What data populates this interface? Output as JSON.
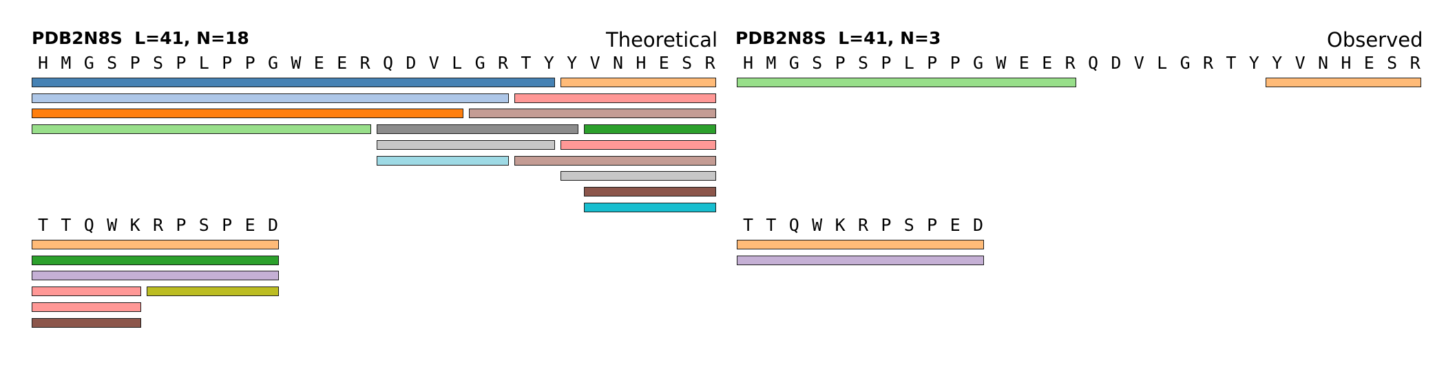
{
  "panels": [
    {
      "id": "theoretical",
      "title": "PDB2N8S  L=41, N=18",
      "label": "Theoretical",
      "rows": [
        {
          "sequence": [
            "H",
            "M",
            "G",
            "S",
            "P",
            "S",
            "P",
            "L",
            "P",
            "P",
            "G",
            "W",
            "E",
            "E",
            "R",
            "Q",
            "D",
            "V",
            "L",
            "G",
            "R",
            "T",
            "Y",
            "Y",
            "V",
            "N",
            "H",
            "E",
            "S",
            "R"
          ],
          "segments": [
            {
              "start": 1,
              "end": 23,
              "track": 0,
              "color": "#4682b4"
            },
            {
              "start": 24,
              "end": 30,
              "track": 0,
              "color": "#ffbb78"
            },
            {
              "start": 1,
              "end": 21,
              "track": 1,
              "color": "#aec7e8"
            },
            {
              "start": 22,
              "end": 30,
              "track": 1,
              "color": "#ff9896"
            },
            {
              "start": 1,
              "end": 19,
              "track": 2,
              "color": "#ff7f0e"
            },
            {
              "start": 20,
              "end": 30,
              "track": 2,
              "color": "#c49c94"
            },
            {
              "start": 1,
              "end": 15,
              "track": 3,
              "color": "#98df8a"
            },
            {
              "start": 16,
              "end": 24,
              "track": 3,
              "color": "#8c8c8c"
            },
            {
              "start": 25,
              "end": 30,
              "track": 3,
              "color": "#2ca02c"
            },
            {
              "start": 16,
              "end": 23,
              "track": 4,
              "color": "#c7c7c7"
            },
            {
              "start": 24,
              "end": 30,
              "track": 4,
              "color": "#ff9896"
            },
            {
              "start": 16,
              "end": 21,
              "track": 5,
              "color": "#9edae5"
            },
            {
              "start": 22,
              "end": 30,
              "track": 5,
              "color": "#c49c94"
            },
            {
              "start": 24,
              "end": 30,
              "track": 6,
              "color": "#c7c7c7"
            },
            {
              "start": 25,
              "end": 30,
              "track": 7,
              "color": "#8c564b"
            },
            {
              "start": 25,
              "end": 30,
              "track": 8,
              "color": "#17becf"
            }
          ]
        },
        {
          "sequence": [
            "T",
            "T",
            "Q",
            "W",
            "K",
            "R",
            "P",
            "S",
            "P",
            "E",
            "D"
          ],
          "segments": [
            {
              "start": 1,
              "end": 11,
              "track": 0,
              "color": "#ffbb78"
            },
            {
              "start": 1,
              "end": 11,
              "track": 1,
              "color": "#2ca02c"
            },
            {
              "start": 1,
              "end": 11,
              "track": 2,
              "color": "#c5b0d5"
            },
            {
              "start": 1,
              "end": 5,
              "track": 3,
              "color": "#ff9896"
            },
            {
              "start": 6,
              "end": 11,
              "track": 3,
              "color": "#bcbd22"
            },
            {
              "start": 1,
              "end": 5,
              "track": 4,
              "color": "#ff9896"
            },
            {
              "start": 1,
              "end": 5,
              "track": 5,
              "color": "#8c564b"
            }
          ]
        }
      ]
    },
    {
      "id": "observed",
      "title": "PDB2N8S  L=41, N=3",
      "label": "Observed",
      "rows": [
        {
          "sequence": [
            "H",
            "M",
            "G",
            "S",
            "P",
            "S",
            "P",
            "L",
            "P",
            "P",
            "G",
            "W",
            "E",
            "E",
            "R",
            "Q",
            "D",
            "V",
            "L",
            "G",
            "R",
            "T",
            "Y",
            "Y",
            "V",
            "N",
            "H",
            "E",
            "S",
            "R"
          ],
          "segments": [
            {
              "start": 1,
              "end": 15,
              "track": 0,
              "color": "#98df8a"
            },
            {
              "start": 24,
              "end": 30,
              "track": 0,
              "color": "#ffbb78"
            }
          ]
        },
        {
          "sequence": [
            "T",
            "T",
            "Q",
            "W",
            "K",
            "R",
            "P",
            "S",
            "P",
            "E",
            "D"
          ],
          "segments": [
            {
              "start": 1,
              "end": 11,
              "track": 0,
              "color": "#ffbb78"
            },
            {
              "start": 1,
              "end": 11,
              "track": 1,
              "color": "#c5b0d5"
            }
          ]
        }
      ]
    }
  ]
}
